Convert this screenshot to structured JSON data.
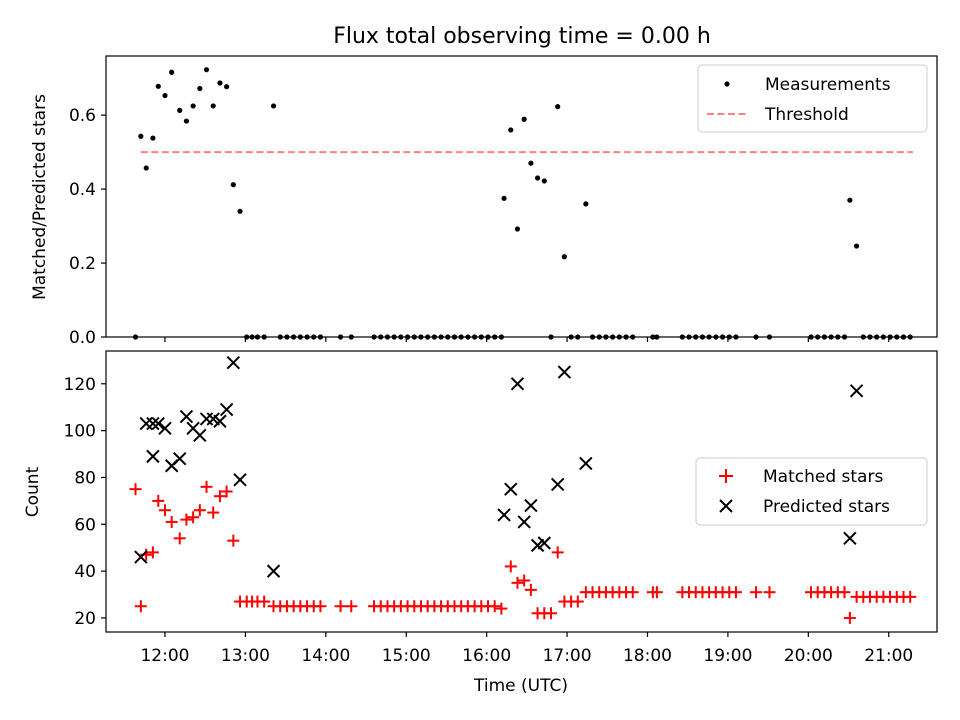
{
  "figure": {
    "title": "Flux total observing time = 0.00 h",
    "xlabel": "Time (UTC)"
  },
  "chart_data": [
    {
      "type": "scatter",
      "ylabel": "Matched/Predicted stars",
      "xlim": [
        "11:16",
        "21:36"
      ],
      "ylim": [
        0,
        0.76
      ],
      "yticks": [
        "0.0",
        "0.2",
        "0.4",
        "0.6"
      ],
      "yticks_values": [
        0,
        0.2,
        0.4,
        0.6
      ],
      "legend_position": "upper right",
      "threshold": {
        "name": "Threshold",
        "value": 0.5,
        "x_start": "11:42",
        "x_end": "21:18",
        "color": "#ff8080"
      },
      "series": [
        {
          "name": "Measurements",
          "color": "#000000",
          "marker": "dot",
          "points": [
            [
              "11:38",
              0.0
            ],
            [
              "11:42",
              0.543
            ],
            [
              "11:46",
              0.457
            ],
            [
              "11:51",
              0.538
            ],
            [
              "11:55",
              0.678
            ],
            [
              "12:00",
              0.653
            ],
            [
              "12:05",
              0.716
            ],
            [
              "12:11",
              0.613
            ],
            [
              "12:16",
              0.584
            ],
            [
              "12:21",
              0.625
            ],
            [
              "12:26",
              0.672
            ],
            [
              "12:31",
              0.723
            ],
            [
              "12:36",
              0.625
            ],
            [
              "12:41",
              0.687
            ],
            [
              "12:46",
              0.677
            ],
            [
              "12:51",
              0.412
            ],
            [
              "12:56",
              0.34
            ],
            [
              "13:01",
              0.0
            ],
            [
              "13:05",
              0.0
            ],
            [
              "13:09",
              0.0
            ],
            [
              "13:14",
              0.0
            ],
            [
              "13:21",
              0.625
            ],
            [
              "13:26",
              0.0
            ],
            [
              "13:31",
              0.0
            ],
            [
              "13:36",
              0.0
            ],
            [
              "13:41",
              0.0
            ],
            [
              "13:46",
              0.0
            ],
            [
              "13:51",
              0.0
            ],
            [
              "13:56",
              0.0
            ],
            [
              "14:11",
              0.0
            ],
            [
              "14:19",
              0.0
            ],
            [
              "14:36",
              0.0
            ],
            [
              "14:41",
              0.0
            ],
            [
              "14:46",
              0.0
            ],
            [
              "14:51",
              0.0
            ],
            [
              "14:56",
              0.0
            ],
            [
              "15:01",
              0.0
            ],
            [
              "15:06",
              0.0
            ],
            [
              "15:11",
              0.0
            ],
            [
              "15:16",
              0.0
            ],
            [
              "15:21",
              0.0
            ],
            [
              "15:26",
              0.0
            ],
            [
              "15:31",
              0.0
            ],
            [
              "15:36",
              0.0
            ],
            [
              "15:41",
              0.0
            ],
            [
              "15:46",
              0.0
            ],
            [
              "15:51",
              0.0
            ],
            [
              "15:56",
              0.0
            ],
            [
              "16:01",
              0.0
            ],
            [
              "16:06",
              0.0
            ],
            [
              "16:11",
              0.0
            ],
            [
              "16:13",
              0.375
            ],
            [
              "16:18",
              0.56
            ],
            [
              "16:23",
              0.292
            ],
            [
              "16:28",
              0.589
            ],
            [
              "16:33",
              0.47
            ],
            [
              "16:38",
              0.43
            ],
            [
              "16:43",
              0.422
            ],
            [
              "16:48",
              0.0
            ],
            [
              "16:53",
              0.623
            ],
            [
              "16:58",
              0.217
            ],
            [
              "17:03",
              0.0
            ],
            [
              "17:08",
              0.0
            ],
            [
              "17:14",
              0.36
            ],
            [
              "17:19",
              0.0
            ],
            [
              "17:24",
              0.0
            ],
            [
              "17:29",
              0.0
            ],
            [
              "17:34",
              0.0
            ],
            [
              "17:39",
              0.0
            ],
            [
              "17:44",
              0.0
            ],
            [
              "17:49",
              0.0
            ],
            [
              "18:04",
              0.0
            ],
            [
              "18:07",
              0.0
            ],
            [
              "18:26",
              0.0
            ],
            [
              "18:31",
              0.0
            ],
            [
              "18:36",
              0.0
            ],
            [
              "18:41",
              0.0
            ],
            [
              "18:46",
              0.0
            ],
            [
              "18:51",
              0.0
            ],
            [
              "18:56",
              0.0
            ],
            [
              "19:01",
              0.0
            ],
            [
              "19:06",
              0.0
            ],
            [
              "19:21",
              0.0
            ],
            [
              "19:31",
              0.0
            ],
            [
              "20:02",
              0.0
            ],
            [
              "20:07",
              0.0
            ],
            [
              "20:12",
              0.0
            ],
            [
              "20:17",
              0.0
            ],
            [
              "20:22",
              0.0
            ],
            [
              "20:27",
              0.0
            ],
            [
              "20:31",
              0.37
            ],
            [
              "20:36",
              0.246
            ],
            [
              "20:41",
              0.0
            ],
            [
              "20:46",
              0.0
            ],
            [
              "20:51",
              0.0
            ],
            [
              "20:56",
              0.0
            ],
            [
              "21:01",
              0.0
            ],
            [
              "21:06",
              0.0
            ],
            [
              "21:11",
              0.0
            ],
            [
              "21:16",
              0.0
            ]
          ]
        }
      ]
    },
    {
      "type": "scatter",
      "ylabel": "Count",
      "xlim": [
        "11:16",
        "21:36"
      ],
      "ylim": [
        14,
        134
      ],
      "yticks": [
        "20",
        "40",
        "60",
        "80",
        "100",
        "120"
      ],
      "yticks_values": [
        20,
        40,
        60,
        80,
        100,
        120
      ],
      "xticks": [
        "12:00",
        "13:00",
        "14:00",
        "15:00",
        "16:00",
        "17:00",
        "18:00",
        "19:00",
        "20:00",
        "21:00"
      ],
      "legend_position": "center right",
      "series": [
        {
          "name": "Matched stars",
          "color": "#ff0000",
          "marker": "plus",
          "points": [
            [
              "11:38",
              75
            ],
            [
              "11:42",
              25
            ],
            [
              "11:46",
              47
            ],
            [
              "11:51",
              48
            ],
            [
              "11:55",
              70
            ],
            [
              "12:00",
              66
            ],
            [
              "12:05",
              61
            ],
            [
              "12:11",
              54
            ],
            [
              "12:16",
              62
            ],
            [
              "12:21",
              63
            ],
            [
              "12:26",
              66
            ],
            [
              "12:31",
              76
            ],
            [
              "12:36",
              65
            ],
            [
              "12:41",
              72
            ],
            [
              "12:46",
              74
            ],
            [
              "12:51",
              53
            ],
            [
              "12:56",
              27
            ],
            [
              "13:01",
              27
            ],
            [
              "13:05",
              27
            ],
            [
              "13:09",
              27
            ],
            [
              "13:14",
              27
            ],
            [
              "13:21",
              25
            ],
            [
              "13:26",
              25
            ],
            [
              "13:31",
              25
            ],
            [
              "13:36",
              25
            ],
            [
              "13:41",
              25
            ],
            [
              "13:46",
              25
            ],
            [
              "13:51",
              25
            ],
            [
              "13:56",
              25
            ],
            [
              "14:11",
              25
            ],
            [
              "14:19",
              25
            ],
            [
              "14:36",
              25
            ],
            [
              "14:41",
              25
            ],
            [
              "14:46",
              25
            ],
            [
              "14:51",
              25
            ],
            [
              "14:56",
              25
            ],
            [
              "15:01",
              25
            ],
            [
              "15:06",
              25
            ],
            [
              "15:11",
              25
            ],
            [
              "15:16",
              25
            ],
            [
              "15:21",
              25
            ],
            [
              "15:26",
              25
            ],
            [
              "15:31",
              25
            ],
            [
              "15:36",
              25
            ],
            [
              "15:41",
              25
            ],
            [
              "15:46",
              25
            ],
            [
              "15:51",
              25
            ],
            [
              "15:56",
              25
            ],
            [
              "16:01",
              25
            ],
            [
              "16:06",
              25
            ],
            [
              "16:11",
              24
            ],
            [
              "16:18",
              42
            ],
            [
              "16:23",
              35
            ],
            [
              "16:28",
              36
            ],
            [
              "16:33",
              32
            ],
            [
              "16:38",
              22
            ],
            [
              "16:43",
              22
            ],
            [
              "16:48",
              22
            ],
            [
              "16:53",
              48
            ],
            [
              "16:58",
              27
            ],
            [
              "17:03",
              27
            ],
            [
              "17:08",
              27
            ],
            [
              "17:14",
              31
            ],
            [
              "17:19",
              31
            ],
            [
              "17:24",
              31
            ],
            [
              "17:29",
              31
            ],
            [
              "17:34",
              31
            ],
            [
              "17:39",
              31
            ],
            [
              "17:44",
              31
            ],
            [
              "17:49",
              31
            ],
            [
              "18:04",
              31
            ],
            [
              "18:07",
              31
            ],
            [
              "18:26",
              31
            ],
            [
              "18:31",
              31
            ],
            [
              "18:36",
              31
            ],
            [
              "18:41",
              31
            ],
            [
              "18:46",
              31
            ],
            [
              "18:51",
              31
            ],
            [
              "18:56",
              31
            ],
            [
              "19:01",
              31
            ],
            [
              "19:06",
              31
            ],
            [
              "19:21",
              31
            ],
            [
              "19:31",
              31
            ],
            [
              "20:02",
              31
            ],
            [
              "20:07",
              31
            ],
            [
              "20:12",
              31
            ],
            [
              "20:17",
              31
            ],
            [
              "20:22",
              31
            ],
            [
              "20:27",
              31
            ],
            [
              "20:31",
              20
            ],
            [
              "20:36",
              29
            ],
            [
              "20:41",
              29
            ],
            [
              "20:46",
              29
            ],
            [
              "20:51",
              29
            ],
            [
              "20:56",
              29
            ],
            [
              "21:01",
              29
            ],
            [
              "21:06",
              29
            ],
            [
              "21:11",
              29
            ],
            [
              "21:16",
              29
            ]
          ]
        },
        {
          "name": "Predicted stars",
          "color": "#000000",
          "marker": "x",
          "points": [
            [
              "11:42",
              46
            ],
            [
              "11:46",
              103
            ],
            [
              "11:51",
              89
            ],
            [
              "11:51",
              103
            ],
            [
              "11:55",
              103
            ],
            [
              "12:00",
              101
            ],
            [
              "12:05",
              85
            ],
            [
              "12:11",
              88
            ],
            [
              "12:16",
              106
            ],
            [
              "12:21",
              101
            ],
            [
              "12:26",
              98
            ],
            [
              "12:31",
              105
            ],
            [
              "12:36",
              105
            ],
            [
              "12:41",
              104
            ],
            [
              "12:46",
              109
            ],
            [
              "12:51",
              129
            ],
            [
              "12:56",
              79
            ],
            [
              "13:21",
              40
            ],
            [
              "16:13",
              64
            ],
            [
              "16:18",
              75
            ],
            [
              "16:23",
              120
            ],
            [
              "16:28",
              61
            ],
            [
              "16:33",
              68
            ],
            [
              "16:38",
              51
            ],
            [
              "16:43",
              52
            ],
            [
              "16:53",
              77
            ],
            [
              "16:58",
              125
            ],
            [
              "17:14",
              86
            ],
            [
              "20:31",
              54
            ],
            [
              "20:36",
              117
            ]
          ]
        }
      ]
    }
  ]
}
